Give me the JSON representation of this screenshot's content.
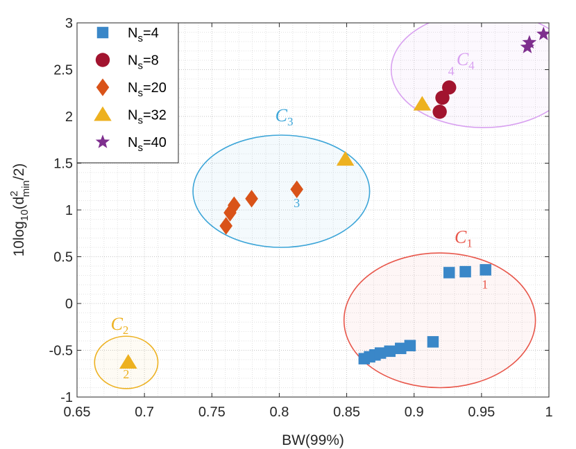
{
  "chart_data": {
    "type": "scatter",
    "xlabel": "BW(99%)",
    "ylabel_parts": {
      "lead": "10log",
      "sub1": "10",
      "paren": "(d",
      "sup": "2",
      "sub2": "min",
      "tail": "/2)"
    },
    "xlim": [
      0.65,
      1.0
    ],
    "ylim": [
      -1,
      3
    ],
    "xticks": [
      0.65,
      0.7,
      0.75,
      0.8,
      0.85,
      0.9,
      0.95,
      1.0
    ],
    "xtick_labels": [
      "0.65",
      "0.7",
      "0.75",
      "0.8",
      "0.85",
      "0.9",
      "0.95",
      "1"
    ],
    "yticks": [
      -1,
      -0.5,
      0,
      0.5,
      1,
      1.5,
      2,
      2.5,
      3
    ],
    "ytick_labels": [
      "-1",
      "-0.5",
      "0",
      "0.5",
      "1",
      "1.5",
      "2",
      "2.5",
      "3"
    ],
    "grid": true,
    "minor_grid": true,
    "legend_position": "top-left",
    "series": [
      {
        "label": {
          "main": "N",
          "sub": "s",
          "rest": "=4"
        },
        "marker": "square",
        "color": "#3a87c8",
        "x": [
          0.863,
          0.867,
          0.871,
          0.875,
          0.882,
          0.89,
          0.897,
          0.914,
          0.926,
          0.938,
          0.953
        ],
        "y": [
          -0.59,
          -0.57,
          -0.55,
          -0.53,
          -0.51,
          -0.48,
          -0.45,
          -0.41,
          0.33,
          0.34,
          0.36
        ]
      },
      {
        "label": {
          "main": "N",
          "sub": "s",
          "rest": "=8"
        },
        "marker": "circle",
        "color": "#a2142f",
        "x": [
          0.919,
          0.921,
          0.926
        ],
        "y": [
          2.05,
          2.2,
          2.31
        ]
      },
      {
        "label": {
          "main": "N",
          "sub": "s",
          "rest": "=20"
        },
        "marker": "diamond",
        "color": "#d95319",
        "x": [
          0.7605,
          0.7635,
          0.7665,
          0.7795,
          0.813
        ],
        "y": [
          0.83,
          0.97,
          1.05,
          1.12,
          1.22
        ]
      },
      {
        "label": {
          "main": "N",
          "sub": "s",
          "rest": "=32"
        },
        "marker": "triangle",
        "color": "#edb120",
        "x": [
          0.688,
          0.849,
          0.906
        ],
        "y": [
          -0.63,
          1.54,
          2.13
        ]
      },
      {
        "label": {
          "main": "N",
          "sub": "s",
          "rest": "=40"
        },
        "marker": "star",
        "color": "#7e2f8e",
        "x": [
          0.984,
          0.9855,
          0.996
        ],
        "y": [
          2.74,
          2.79,
          2.88
        ]
      }
    ],
    "clusters": [
      {
        "name": "C",
        "sub": "1",
        "cx": 0.919,
        "cy": -0.18,
        "rx": 0.071,
        "ry": 0.72,
        "stroke": "#e8564a",
        "fill": "rgba(232,86,74,0.05)",
        "label_x": 0.93,
        "label_y": 0.65,
        "point_label": "1",
        "point_label_x": 0.9525,
        "point_label_y": 0.16
      },
      {
        "name": "C",
        "sub": "2",
        "cx": 0.6865,
        "cy": -0.63,
        "rx": 0.0235,
        "ry": 0.28,
        "stroke": "#edb120",
        "fill": "rgba(237,177,32,0.05)",
        "label_x": 0.675,
        "label_y": -0.28,
        "point_label": "2",
        "point_label_x": 0.6865,
        "point_label_y": -0.8
      },
      {
        "name": "C",
        "sub": "3",
        "cx": 0.8015,
        "cy": 1.2,
        "rx": 0.0655,
        "ry": 0.6,
        "stroke": "#3ca5d8",
        "fill": "rgba(60,165,216,0.06)",
        "label_x": 0.797,
        "label_y": 1.95,
        "point_label": "3",
        "point_label_x": 0.813,
        "point_label_y": 1.03
      },
      {
        "name": "C",
        "sub": "4",
        "cx": 0.9515,
        "cy": 2.5,
        "rx": 0.0685,
        "ry": 0.62,
        "stroke": "#d8a0f0",
        "fill": "rgba(216,160,240,0.07)",
        "label_x": 0.9315,
        "label_y": 2.55,
        "point_label": "4",
        "point_label_x": 0.9275,
        "point_label_y": 2.44
      }
    ]
  }
}
